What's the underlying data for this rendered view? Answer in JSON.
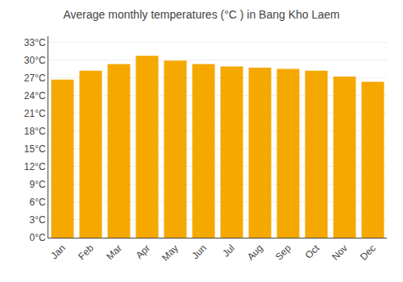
{
  "chart_data": {
    "type": "bar",
    "title": "Average monthly temperatures (°C ) in Bang Kho Laem",
    "categories": [
      "Jan",
      "Feb",
      "Mar",
      "Apr",
      "May",
      "Jun",
      "Jul",
      "Aug",
      "Sep",
      "Oct",
      "Nov",
      "Dec"
    ],
    "values": [
      26.7,
      28.2,
      29.3,
      30.7,
      29.9,
      29.3,
      28.9,
      28.7,
      28.5,
      28.2,
      27.2,
      26.3
    ],
    "color": "#F5A800",
    "ylim": [
      0,
      34
    ],
    "yticks": [
      {
        "value": 0,
        "label": "0°C"
      },
      {
        "value": 3,
        "label": "3°C"
      },
      {
        "value": 6,
        "label": "6°C"
      },
      {
        "value": 9,
        "label": "9°C"
      },
      {
        "value": 12,
        "label": "12°C"
      },
      {
        "value": 15,
        "label": "15°C"
      },
      {
        "value": 18,
        "label": "18°C"
      },
      {
        "value": 21,
        "label": "21°C"
      },
      {
        "value": 24,
        "label": "24°C"
      },
      {
        "value": 27,
        "label": "27°C"
      },
      {
        "value": 30,
        "label": "30°C"
      },
      {
        "value": 33,
        "label": "33°C"
      }
    ],
    "grid": true
  }
}
